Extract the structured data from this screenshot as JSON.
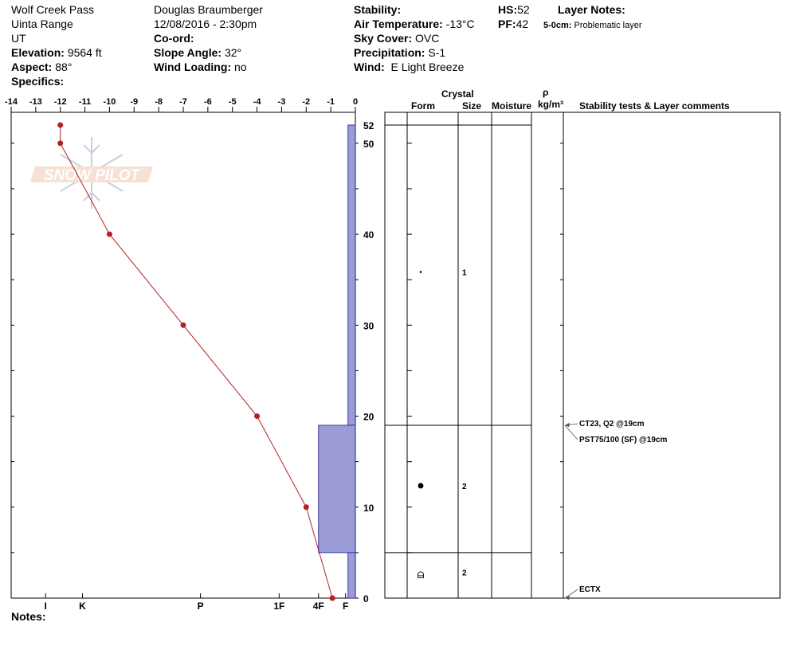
{
  "header": {
    "location": "Wolf Creek Pass",
    "range": "Uinta Range",
    "state": "UT",
    "elevation_label": "Elevation:",
    "elevation_value": "9564 ft",
    "aspect_label": "Aspect:",
    "aspect_value": "88°",
    "specifics_label": "Specifics:",
    "observer": "Douglas Braumberger",
    "datetime": "12/08/2016 - 2:30pm",
    "coord_label": "Co-ord:",
    "slope_label": "Slope Angle:",
    "slope_value": "32°",
    "wind_loading_label": "Wind Loading:",
    "wind_loading_value": "no",
    "stability_label": "Stability:",
    "air_temp_label": "Air Temperature:",
    "air_temp_value": "-13°C",
    "sky_label": "Sky Cover:",
    "sky_value": "OVC",
    "precip_label": "Precipitation:",
    "precip_value": "S-1",
    "wind_label": "Wind:",
    "wind_value": "E Light Breeze",
    "hs_label": "HS:",
    "hs_value": "52",
    "pf_label": "PF:",
    "pf_value": "42",
    "layer_notes_label": "Layer Notes:",
    "layer_note_range": "5-0cm:",
    "layer_note_text": "Problematic layer"
  },
  "notes_label": "Notes:",
  "watermark": "SNOW PILOT",
  "table_headers": {
    "crystal": "Crystal",
    "form": "Form",
    "size": "Size",
    "moisture": "Moisture",
    "rho": "ρ",
    "density_unit": "kg/m³",
    "stability": "Stability tests & Layer comments"
  },
  "colors": {
    "temperature": "#b22222",
    "hardness": "#9b9bd8"
  },
  "chart_data": {
    "type": "line",
    "xlabel": "",
    "ylabel": "",
    "temp_axis": {
      "ticks": [
        -14,
        -13,
        -12,
        -11,
        -10,
        -9,
        -8,
        -7,
        -6,
        -5,
        -4,
        -3,
        -2,
        -1,
        0
      ],
      "labels": [
        "-14",
        "-13",
        "-12",
        "-11",
        "-10",
        "-9",
        "-8",
        "-7",
        "-6",
        "-5",
        "-4",
        "-3",
        "-2",
        "-1",
        "0"
      ],
      "range": [
        -14,
        0
      ]
    },
    "height_axis": {
      "range": [
        0,
        52
      ],
      "labels": [
        "0",
        "10",
        "20",
        "30",
        "40",
        "50",
        "52"
      ],
      "ticks": [
        0,
        10,
        20,
        30,
        40,
        50,
        52
      ]
    },
    "hardness_axis": {
      "labels": [
        "I",
        "K",
        "P",
        "1F",
        "4F",
        "F"
      ],
      "temp_equiv": [
        -12.6,
        -11.1,
        -6.3,
        -3.1,
        -1.5,
        -0.4
      ]
    },
    "temperature_profile": {
      "depths": [
        52,
        50,
        40,
        30,
        20,
        10,
        0
      ],
      "temps": [
        -12,
        -12,
        -10,
        -7,
        -4,
        -2,
        -1
      ]
    },
    "hardness_layers": [
      {
        "top": 52,
        "bottom": 19,
        "hardness": "F",
        "left_temp": -0.3
      },
      {
        "top": 19,
        "bottom": 5,
        "hardness": "4F",
        "left_temp": -1.5
      },
      {
        "top": 5,
        "bottom": 0,
        "hardness": "F",
        "left_temp": -0.3
      }
    ]
  },
  "layers": [
    {
      "top": 52,
      "bottom": 19,
      "form": "small-dot",
      "size": "1",
      "moisture": ""
    },
    {
      "top": 19,
      "bottom": 5,
      "form": "large-dot",
      "size": "2",
      "moisture": ""
    },
    {
      "top": 5,
      "bottom": 0,
      "form": "faceted",
      "size": "2",
      "moisture": ""
    }
  ],
  "stability_tests": [
    {
      "depth": 19,
      "text": "CT23, Q2 @19cm"
    },
    {
      "depth": 19,
      "text": "PST75/100 (SF) @19cm"
    },
    {
      "depth": 0,
      "text": "ECTX"
    }
  ]
}
